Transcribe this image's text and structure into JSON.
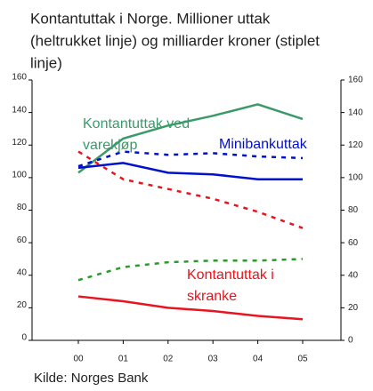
{
  "chart_data": {
    "type": "line",
    "title": [
      "Kontantuttak i Norge. Millioner uttak",
      "(heltrukket linje) og milliarder kroner (stiplet",
      "linje)"
    ],
    "categories": [
      "00",
      "01",
      "02",
      "03",
      "04",
      "05"
    ],
    "series": [
      {
        "color": "#3a9a6a",
        "values": [
          103,
          124,
          132,
          138,
          145,
          136
        ]
      },
      {
        "color": "#0010cc",
        "values": [
          106,
          109,
          103,
          102,
          99,
          99
        ]
      },
      {
        "color": "#e8141e",
        "values": [
          27,
          24,
          20,
          18,
          15,
          13
        ]
      },
      {
        "color": "#e8141e",
        "dashed": true,
        "axis": "y2",
        "values": [
          116,
          99,
          93,
          87,
          79,
          69
        ]
      },
      {
        "color": "#0010cc",
        "dashed": true,
        "axis": "y2",
        "values": [
          107,
          116,
          114,
          115,
          113,
          112
        ]
      },
      {
        "color": "#2a9a2a",
        "dashed": true,
        "axis": "y2",
        "values": [
          37,
          45,
          48,
          49,
          49,
          50
        ]
      }
    ],
    "annotations": [
      [
        "Kontantuttak ved",
        "varekjøp"
      ],
      [
        "Minibankuttak"
      ],
      [
        "Kontantuttak i",
        "skranke"
      ]
    ],
    "ylim": [
      0,
      160
    ],
    "yticks": [
      0,
      20,
      40,
      60,
      80,
      100,
      120,
      140,
      160
    ],
    "y2lim": [
      0,
      160
    ],
    "y2ticks": [
      0,
      20,
      40,
      60,
      80,
      100,
      120,
      140,
      160
    ],
    "source": "Kilde: Norges Bank"
  }
}
